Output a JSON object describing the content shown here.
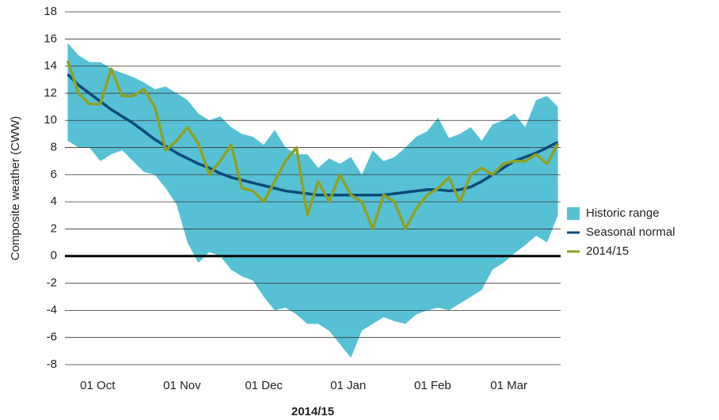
{
  "chart_data": {
    "type": "line",
    "x_label": "2014/15",
    "y_label": "Composite weather (CWW)",
    "x": [
      "20 Sep",
      "24 Sep",
      "28 Sep",
      "02 Oct",
      "06 Oct",
      "10 Oct",
      "14 Oct",
      "18 Oct",
      "22 Oct",
      "26 Oct",
      "30 Oct",
      "03 Nov",
      "07 Nov",
      "11 Nov",
      "15 Nov",
      "19 Nov",
      "23 Nov",
      "27 Nov",
      "01 Dec",
      "05 Dec",
      "09 Dec",
      "13 Dec",
      "17 Dec",
      "21 Dec",
      "25 Dec",
      "29 Dec",
      "02 Jan",
      "06 Jan",
      "10 Jan",
      "14 Jan",
      "18 Jan",
      "22 Jan",
      "26 Jan",
      "30 Jan",
      "03 Feb",
      "07 Feb",
      "11 Feb",
      "15 Feb",
      "19 Feb",
      "23 Feb",
      "27 Feb",
      "03 Mar",
      "07 Mar",
      "11 Mar",
      "15 Mar",
      "19 Mar"
    ],
    "series": [
      {
        "name": "Historic range",
        "color": "#56c1d5",
        "kind": "range",
        "low": [
          8.5,
          8.0,
          8.0,
          7.0,
          7.5,
          7.8,
          7.0,
          6.2,
          6.0,
          5.0,
          3.8,
          1.0,
          -0.5,
          0.3,
          0.0,
          -1.0,
          -1.5,
          -1.8,
          -3.0,
          -4.0,
          -3.8,
          -4.3,
          -5.0,
          -5.0,
          -5.5,
          -6.5,
          -7.5,
          -5.5,
          -5.0,
          -4.5,
          -4.8,
          -5.0,
          -4.3,
          -4.0,
          -3.8,
          -4.0,
          -3.5,
          -3.0,
          -2.5,
          -1.0,
          -0.5,
          0.2,
          0.8,
          1.5,
          1.0,
          3.0
        ],
        "high": [
          15.7,
          14.8,
          14.3,
          14.3,
          13.8,
          13.5,
          13.2,
          12.8,
          12.3,
          12.5,
          12.0,
          11.5,
          10.5,
          10.0,
          10.3,
          9.5,
          9.0,
          8.8,
          8.2,
          9.3,
          8.0,
          7.5,
          7.5,
          6.5,
          7.2,
          6.8,
          7.3,
          6.0,
          7.8,
          7.0,
          7.3,
          8.0,
          8.8,
          9.2,
          10.2,
          8.7,
          9.0,
          9.5,
          8.5,
          9.7,
          10.0,
          10.5,
          9.5,
          11.5,
          11.8,
          11.0
        ]
      },
      {
        "name": "Seasonal normal",
        "color": "#0b4a7a",
        "values": [
          13.4,
          12.6,
          12.0,
          11.4,
          10.8,
          10.3,
          9.8,
          9.2,
          8.6,
          8.1,
          7.6,
          7.2,
          6.8,
          6.5,
          6.1,
          5.8,
          5.6,
          5.4,
          5.2,
          5.0,
          4.8,
          4.7,
          4.6,
          4.5,
          4.5,
          4.5,
          4.5,
          4.5,
          4.5,
          4.5,
          4.6,
          4.7,
          4.8,
          4.9,
          4.9,
          4.8,
          4.9,
          5.1,
          5.5,
          6.0,
          6.5,
          7.0,
          7.3,
          7.6,
          8.0,
          8.4
        ]
      },
      {
        "name": "2014/15",
        "color": "#8ea024",
        "values": [
          14.4,
          12.0,
          11.2,
          11.2,
          13.8,
          11.8,
          11.8,
          12.3,
          11.0,
          7.8,
          8.5,
          9.5,
          8.3,
          6.0,
          7.0,
          8.2,
          5.0,
          4.8,
          4.0,
          5.5,
          7.0,
          8.0,
          3.0,
          5.5,
          4.0,
          6.0,
          4.5,
          4.0,
          2.0,
          4.5,
          4.0,
          2.0,
          3.5,
          4.5,
          5.0,
          5.8,
          4.0,
          6.0,
          6.5,
          6.0,
          6.8,
          7.0,
          7.0,
          7.5,
          6.8,
          8.3
        ]
      }
    ],
    "xlim": [
      "19 Sep",
      "20 Mar"
    ],
    "xticks": [
      "01 Oct",
      "01 Nov",
      "01 Dec",
      "01 Jan",
      "01 Feb",
      "01 Mar"
    ],
    "ylim": [
      -8,
      18
    ],
    "yticks": [
      -8,
      -6,
      -4,
      -2,
      0,
      2,
      4,
      6,
      8,
      10,
      12,
      14,
      16,
      18
    ],
    "grid": true,
    "legend": "right"
  }
}
